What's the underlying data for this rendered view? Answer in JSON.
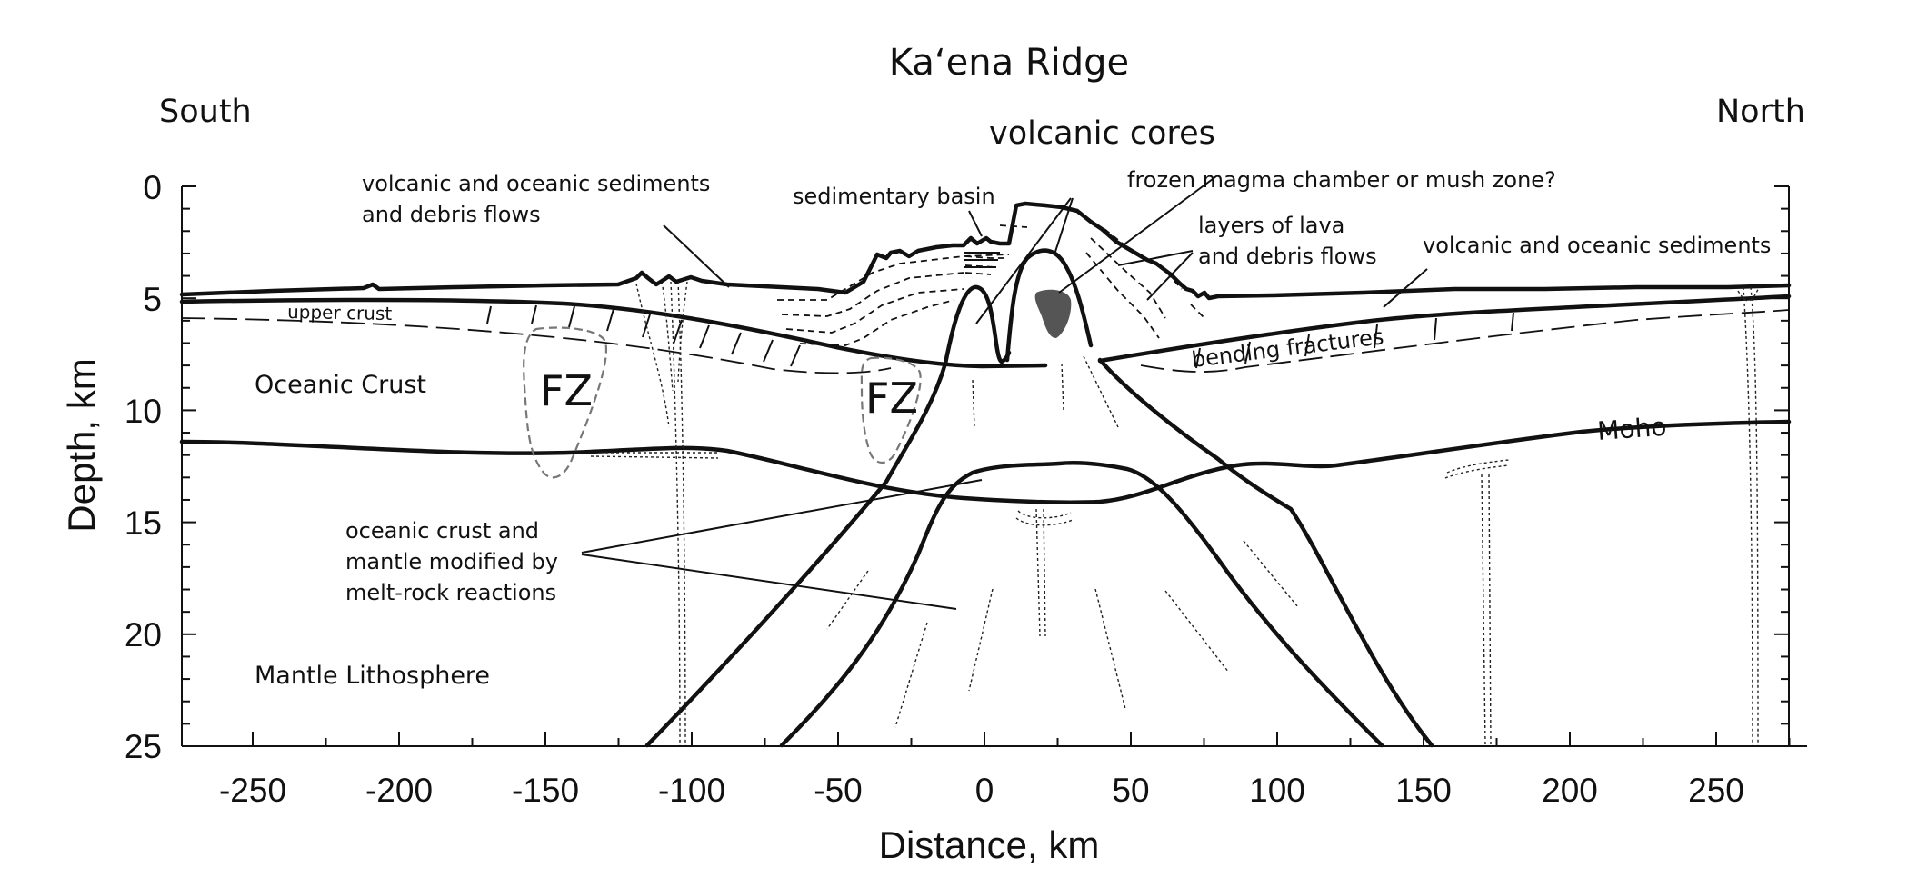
{
  "diagram": {
    "title": "Ka‘ena Ridge",
    "left_direction": "South",
    "right_direction": "North",
    "x_axis": {
      "label": "Distance, km",
      "range": [
        -275,
        275
      ],
      "ticks": [
        "-250",
        "-200",
        "-150",
        "-100",
        "-50",
        "0",
        "50",
        "100",
        "150",
        "200",
        "250"
      ]
    },
    "y_axis": {
      "label": "Depth, km",
      "range": [
        0,
        25
      ],
      "ticks": [
        "0",
        "5",
        "10",
        "15",
        "20",
        "25"
      ]
    },
    "labels": {
      "volcanic_cores": "volcanic cores",
      "sed_debris_1": "volcanic and oceanic sediments",
      "sed_debris_2": "and debris flows",
      "sedimentary_basin": "sedimentary basin",
      "frozen_chamber": "frozen magma chamber or mush zone?",
      "layers_1": "layers of lava",
      "layers_2": "and debris flows",
      "volcanic_sediments_right": "volcanic and oceanic sediments",
      "upper_crust": "upper crust",
      "bending_fractures": "bending fractures",
      "oceanic_crust": "Oceanic Crust",
      "fz_left": "FZ",
      "fz_center": "FZ",
      "moho": "Moho",
      "modified_1": "oceanic crust and",
      "modified_2": "mantle modified by",
      "modified_3": "melt-rock reactions",
      "mantle_lithosphere": "Mantle Lithosphere"
    },
    "colors": {
      "line": "#111111",
      "fault_zone": "#777777",
      "magma_chamber": "#555555"
    }
  }
}
